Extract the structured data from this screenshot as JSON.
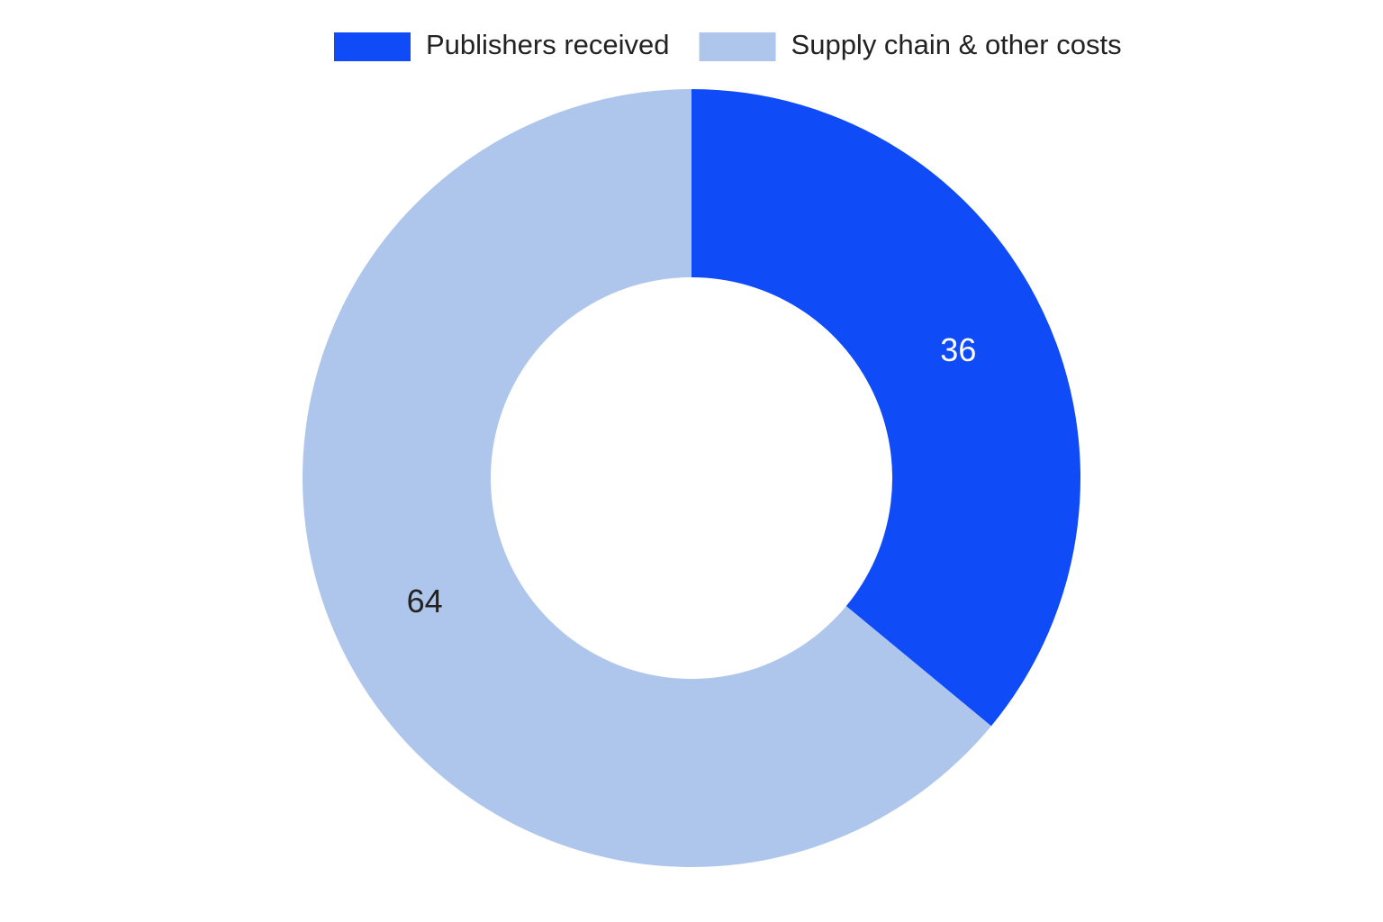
{
  "chart_data": {
    "type": "donut",
    "categories": [
      "Publishers received",
      "Supply chain & other costs"
    ],
    "values": [
      36,
      64
    ],
    "colors": [
      "#0f4bf7",
      "#aec6ec"
    ],
    "legend": "top"
  }
}
